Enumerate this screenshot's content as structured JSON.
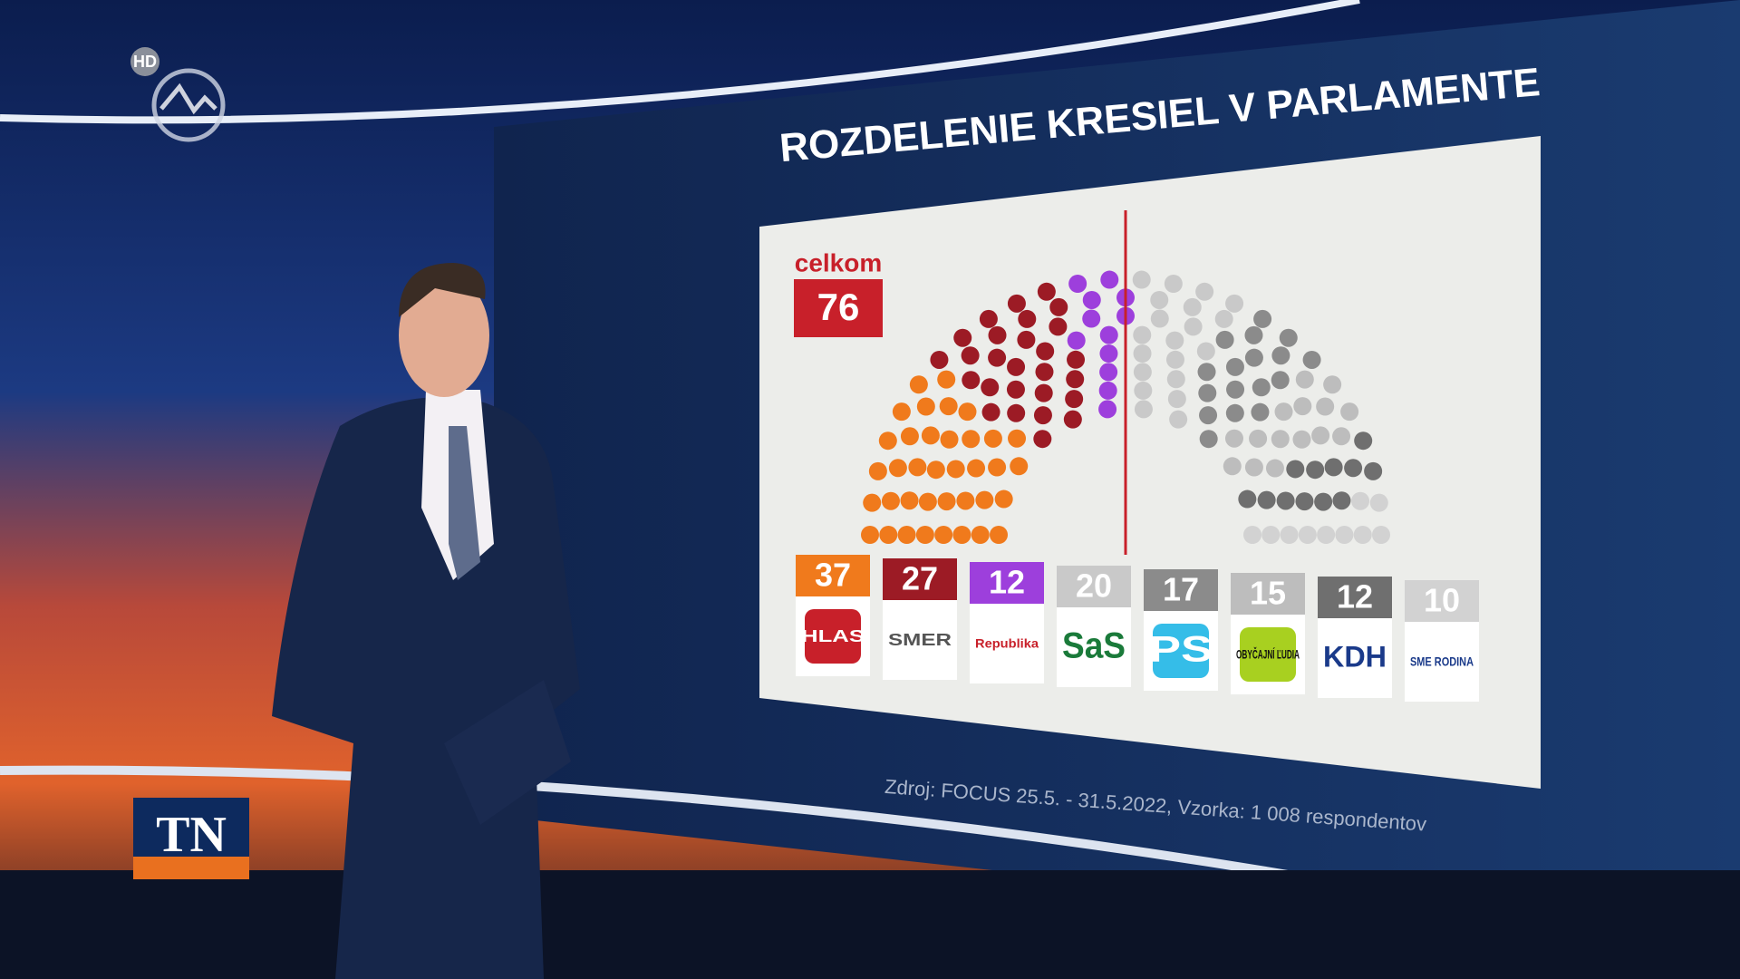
{
  "overlay": {
    "badge": "HD",
    "channel": "TN"
  },
  "chart_data": {
    "type": "parliament",
    "title": "ROZDELENIE KRESIEL V PARLAMENTE",
    "total_label": "celkom",
    "majority": 76,
    "categories": [
      "HLAS",
      "SMER",
      "Republika",
      "SaS",
      "PS",
      "OBYČAJNÍ ĽUDIA",
      "KDH",
      "SME RODINA"
    ],
    "values": [
      37,
      27,
      12,
      20,
      17,
      15,
      12,
      10
    ],
    "colors": [
      "#f07a1c",
      "#9c1b25",
      "#9d3fdc",
      "#c9c9c9",
      "#8b8b8b",
      "#bdbdbd",
      "#6f6f6f",
      "#d2d2d2"
    ],
    "source": "Zdroj: FOCUS 25.5. - 31.5.2022, Vzorka: 1 008 respondentov"
  }
}
